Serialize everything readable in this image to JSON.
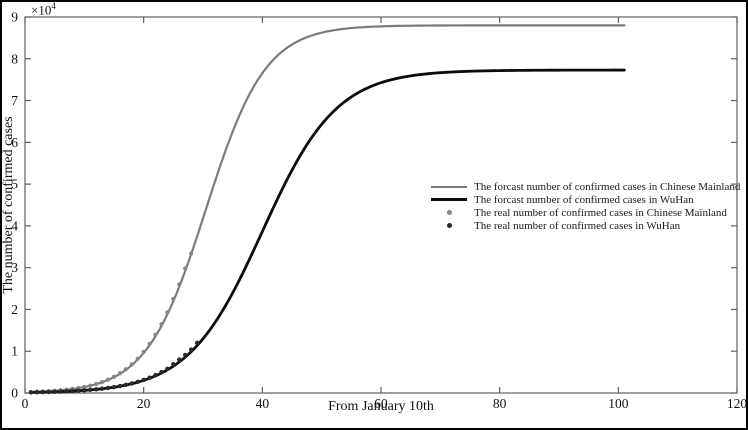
{
  "figure": {
    "y_multiplier_base": "×10",
    "y_multiplier_exp": "4"
  },
  "legend": {
    "items": [
      {
        "marker": "line",
        "color": "#7b7b7b",
        "thickness": 2,
        "label": "The forcast number of confirmed cases in Chinese Mainland"
      },
      {
        "marker": "line",
        "color": "#0c0c0c",
        "thickness": 3,
        "label": "The forcast number of confirmed cases in WuHan"
      },
      {
        "marker": "dot",
        "color": "#868686",
        "label": "The real number of confirmed cases in Chinese Mainland"
      },
      {
        "marker": "dot",
        "color": "#2a2a2a",
        "label": "The real number of confirmed cases in WuHan"
      }
    ]
  },
  "chart_data": {
    "type": "line",
    "title": "",
    "xlabel": "From January 10th",
    "ylabel": "The number of confirmed cases",
    "y_axis_multiplier": "×10^4",
    "xlim": [
      0,
      120
    ],
    "ylim": [
      0,
      90000
    ],
    "x_ticks": [
      0,
      20,
      40,
      60,
      80,
      100,
      120
    ],
    "y_ticks": [
      0,
      10000,
      20000,
      30000,
      40000,
      50000,
      60000,
      70000,
      80000,
      90000
    ],
    "y_tick_labels": [
      "0",
      "1",
      "2",
      "3",
      "4",
      "5",
      "6",
      "7",
      "8",
      "9"
    ],
    "grid": false,
    "box": true,
    "legend_position": "inside-right-middle",
    "series": [
      {
        "slug": "forecast-chinese-mainland",
        "name": "The forcast number of confirmed cases in Chinese Mainland",
        "kind": "curve",
        "model": "logistic",
        "L": 88000,
        "k": 0.2,
        "x0": 30.5,
        "x_start": 1,
        "x_end": 101,
        "color": "#7b7b7b",
        "width": 2.2
      },
      {
        "slug": "forecast-wuhan",
        "name": "The forcast number of confirmed cases in WuHan",
        "kind": "curve",
        "model": "logistic",
        "L": 77300,
        "k": 0.16,
        "x0": 40,
        "x_start": 1,
        "x_end": 101,
        "color": "#0c0c0c",
        "width": 2.8
      },
      {
        "slug": "real-chinese-mainland",
        "name": "The real number of confirmed cases in Chinese Mainland",
        "kind": "scatter",
        "color": "#868686",
        "radius": 2.1,
        "x": [
          1,
          2,
          3,
          4,
          5,
          6,
          7,
          8,
          9,
          10,
          11,
          12,
          13,
          14,
          15,
          16,
          17,
          18,
          19,
          20,
          21,
          22,
          23,
          24,
          25,
          26,
          27,
          28
        ],
        "y": [
          240,
          300,
          360,
          450,
          540,
          660,
          800,
          980,
          1190,
          1460,
          1780,
          2160,
          2630,
          3190,
          3870,
          4700,
          5680,
          6850,
          8200,
          9850,
          11750,
          13950,
          16450,
          19300,
          22500,
          26000,
          29800,
          33400
        ]
      },
      {
        "slug": "real-wuhan",
        "name": "The real number of confirmed cases in WuHan",
        "kind": "scatter",
        "color": "#2a2a2a",
        "radius": 2.2,
        "x": [
          1,
          2,
          3,
          4,
          5,
          6,
          7,
          8,
          9,
          10,
          11,
          12,
          13,
          14,
          15,
          16,
          17,
          18,
          19,
          20,
          21,
          22,
          23,
          24,
          25,
          26,
          27,
          28,
          29
        ],
        "y": [
          150,
          180,
          210,
          240,
          290,
          340,
          400,
          470,
          550,
          640,
          750,
          880,
          1030,
          1210,
          1420,
          1660,
          1950,
          2280,
          2670,
          3120,
          3650,
          4280,
          5000,
          5800,
          6900,
          8000,
          9100,
          10400,
          12000
        ]
      }
    ]
  }
}
